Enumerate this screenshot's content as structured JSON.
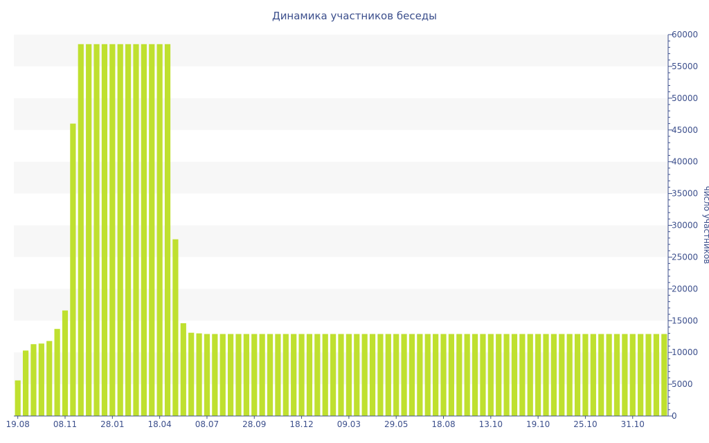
{
  "chart_data": {
    "type": "bar",
    "title": "Динамика участников беседы",
    "xlabel": "",
    "ylabel": "число участников",
    "ylim": [
      0,
      60000
    ],
    "yticks": [
      0,
      5000,
      10000,
      15000,
      20000,
      25000,
      30000,
      35000,
      40000,
      45000,
      50000,
      55000,
      60000
    ],
    "y_axis_side": "right",
    "bar_color": "#bfe02f",
    "band_color": "#f7f7f7",
    "axis_color": "#3c4f8c",
    "x_tick_labels": [
      "19.08",
      "08.11",
      "28.01",
      "18.04",
      "08.07",
      "28.09",
      "18.12",
      "09.03",
      "29.05",
      "18.08",
      "13.10",
      "19.10",
      "25.10",
      "31.10"
    ],
    "x_tick_positions": [
      0,
      6,
      12,
      18,
      24,
      30,
      36,
      42,
      48,
      54,
      60,
      66,
      72,
      78
    ],
    "series": [
      {
        "values": [
          5600,
          10300,
          11300,
          11400,
          11800,
          13700,
          16600,
          46000,
          58500,
          58500,
          58500,
          58500,
          58500,
          58500,
          58500,
          58500,
          58500,
          58500,
          58500,
          58500,
          27800,
          14600,
          13100,
          13000,
          12900,
          12900,
          12900,
          12900,
          12900,
          12900,
          12900,
          12900,
          12900,
          12900,
          12900,
          12900,
          12900,
          12900,
          12900,
          12900,
          12900,
          12900,
          12900,
          12900,
          12900,
          12900,
          12900,
          12900,
          12900,
          12900,
          12900,
          12900,
          12900,
          12900,
          12900,
          12900,
          12900,
          12900,
          12900,
          12900,
          12900,
          12900,
          12900,
          12900,
          12900,
          12900,
          12900,
          12900,
          12900,
          12900,
          12900,
          12900,
          12900,
          12900,
          12900,
          12900,
          12900,
          12900,
          12900,
          12900,
          12900,
          12900,
          12900
        ]
      }
    ]
  }
}
